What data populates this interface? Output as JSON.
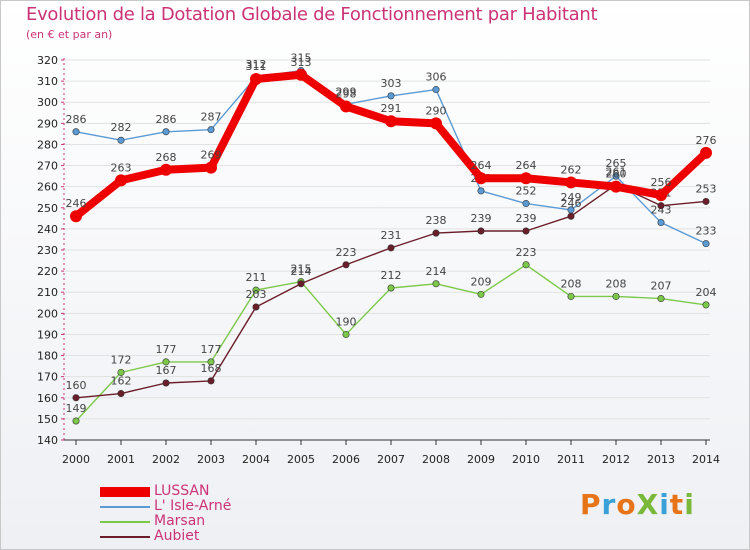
{
  "header": {
    "title": "Evolution de la Dotation Globale de Fonctionnement par Habitant",
    "subtitle": "(en € et par an)"
  },
  "brand": {
    "text": "ProXiti",
    "colors": [
      "#e8741a",
      "#3aa0d8",
      "#e8741a",
      "#7ab83a",
      "#3aa0d8",
      "#e8741a",
      "#7ab83a"
    ]
  },
  "chart_data": {
    "type": "line",
    "title": "Evolution de la Dotation Globale de Fonctionnement par Habitant",
    "subtitle": "(en € et par an)",
    "xlabel": "",
    "ylabel": "",
    "ylim": [
      140,
      320
    ],
    "yticks": [
      140,
      150,
      160,
      170,
      180,
      190,
      200,
      210,
      220,
      230,
      240,
      250,
      260,
      270,
      280,
      290,
      300,
      310,
      320
    ],
    "categories": [
      "2000",
      "2001",
      "2002",
      "2003",
      "2004",
      "2005",
      "2006",
      "2007",
      "2008",
      "2009",
      "2010",
      "2011",
      "2012",
      "2013",
      "2014"
    ],
    "legend_position": "bottom-left",
    "series": [
      {
        "name": "L' Isle-Arné",
        "color": "#5b9bd5",
        "values": [
          286,
          282,
          286,
          287,
          312,
          315,
          299,
          303,
          306,
          258,
          252,
          249,
          265,
          243,
          233
        ]
      },
      {
        "name": "Marsan",
        "color": "#7cc94a",
        "values": [
          149,
          172,
          177,
          177,
          211,
          215,
          190,
          212,
          214,
          209,
          223,
          208,
          208,
          207,
          204
        ]
      },
      {
        "name": "Aubiet",
        "color": "#6b1e2a",
        "values": [
          160,
          162,
          167,
          168,
          203,
          214,
          223,
          231,
          238,
          239,
          239,
          246,
          261,
          251,
          253
        ]
      },
      {
        "name": "LUSSAN",
        "color": "#ee0000",
        "values": [
          246,
          263,
          268,
          269,
          311,
          313,
          298,
          291,
          290,
          264,
          264,
          262,
          260,
          256,
          276
        ]
      }
    ]
  }
}
